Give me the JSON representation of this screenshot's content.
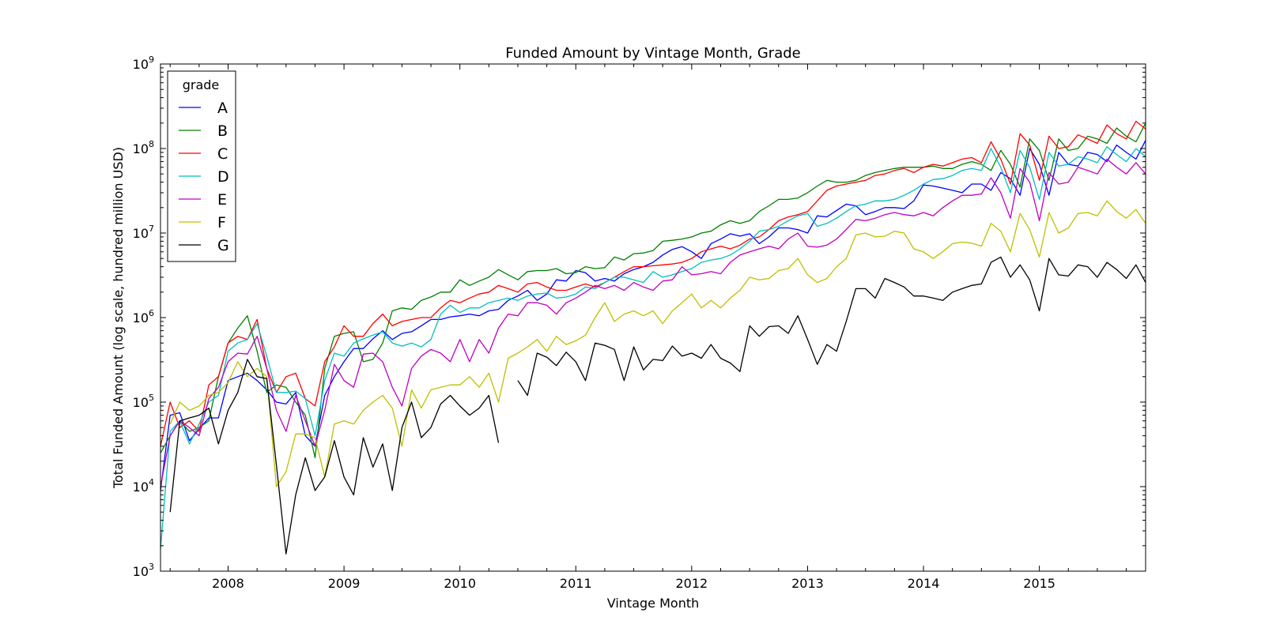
{
  "chart_data": {
    "type": "line",
    "title": "Funded Amount by Vintage Month, Grade",
    "xlabel": "Vintage Month",
    "ylabel": "Total Funded Amount (log scale, hundred million USD)",
    "yscale": "log",
    "ylim": [
      1000,
      1000000000
    ],
    "x_range": [
      "2007-06",
      "2015-12"
    ],
    "x_ticks": [
      "2008",
      "2009",
      "2010",
      "2011",
      "2012",
      "2013",
      "2014",
      "2015"
    ],
    "y_ticks": [
      {
        "value": 1000,
        "base": "10",
        "exp": "3"
      },
      {
        "value": 10000,
        "base": "10",
        "exp": "4"
      },
      {
        "value": 100000,
        "base": "10",
        "exp": "5"
      },
      {
        "value": 1000000,
        "base": "10",
        "exp": "6"
      },
      {
        "value": 10000000,
        "base": "10",
        "exp": "7"
      },
      {
        "value": 100000000,
        "base": "10",
        "exp": "8"
      },
      {
        "value": 1000000000,
        "base": "10",
        "exp": "9"
      }
    ],
    "grid": false,
    "legend": {
      "title": "grade",
      "position": "top-left"
    },
    "start_month": "2007-06",
    "series": [
      {
        "name": "A",
        "color": "#0000ff",
        "start": "2007-06",
        "values": [
          9000,
          70000,
          75000,
          35000,
          48000,
          65000,
          65000,
          180000,
          200000,
          220000,
          180000,
          140000,
          100000,
          95000,
          130000,
          40000,
          30000,
          120000,
          200000,
          300000,
          430000,
          430000,
          560000,
          700000,
          550000,
          650000,
          680000,
          800000,
          950000,
          950000,
          1020000,
          1050000,
          1100000,
          1050000,
          1200000,
          1250000,
          1600000,
          1800000,
          2100000,
          1600000,
          1900000,
          2800000,
          2700000,
          3600000,
          3400000,
          2700000,
          2900000,
          2700000,
          3300000,
          3700000,
          4000000,
          4500000,
          5500000,
          6400000,
          6900000,
          6000000,
          5000000,
          7500000,
          8500000,
          9800000,
          9200000,
          9800000,
          7500000,
          9000000,
          11500000,
          11500000,
          11000000,
          10000000,
          16000000,
          15500000,
          18500000,
          22000000,
          21000000,
          16500000,
          18000000,
          20000000,
          20000000,
          19500000,
          24000000,
          37000000,
          36000000,
          34000000,
          32000000,
          30000000,
          38000000,
          38000000,
          32000000,
          52000000,
          44000000,
          28000000,
          100000000,
          65000000,
          28000000,
          90000000,
          65000000,
          62000000,
          90000000,
          85000000,
          70000000,
          110000000,
          90000000,
          75000000,
          125000000,
          95000000,
          115000000
        ]
      },
      {
        "name": "B",
        "color": "#008000",
        "start": "2007-06",
        "values": [
          25000,
          40000,
          60000,
          45000,
          50000,
          60000,
          200000,
          500000,
          750000,
          1050000,
          400000,
          130000,
          160000,
          150000,
          100000,
          70000,
          22000,
          250000,
          600000,
          650000,
          680000,
          300000,
          320000,
          500000,
          1200000,
          1300000,
          1250000,
          1600000,
          1750000,
          2000000,
          2000000,
          2800000,
          2400000,
          2700000,
          3000000,
          3700000,
          3200000,
          2800000,
          3500000,
          3600000,
          3600000,
          3800000,
          3300000,
          3400000,
          4000000,
          3800000,
          3900000,
          5200000,
          4800000,
          5700000,
          5800000,
          6200000,
          8000000,
          8200000,
          8500000,
          9000000,
          10000000,
          10500000,
          12500000,
          14000000,
          13000000,
          14000000,
          18000000,
          21000000,
          25000000,
          25000000,
          26000000,
          30000000,
          36000000,
          42000000,
          40000000,
          40000000,
          42000000,
          48000000,
          52000000,
          55000000,
          58000000,
          60000000,
          60000000,
          60000000,
          62000000,
          58000000,
          58000000,
          65000000,
          70000000,
          65000000,
          55000000,
          95000000,
          65000000,
          35000000,
          130000000,
          95000000,
          42000000,
          130000000,
          95000000,
          100000000,
          140000000,
          130000000,
          115000000,
          175000000,
          140000000,
          120000000,
          200000000,
          160000000,
          180000000
        ]
      },
      {
        "name": "C",
        "color": "#ff0000",
        "start": "2007-06",
        "values": [
          30000,
          100000,
          50000,
          60000,
          45000,
          160000,
          200000,
          500000,
          600000,
          550000,
          950000,
          250000,
          130000,
          200000,
          220000,
          110000,
          90000,
          300000,
          450000,
          800000,
          600000,
          600000,
          850000,
          1100000,
          800000,
          900000,
          950000,
          1000000,
          1000000,
          1300000,
          1600000,
          1500000,
          1700000,
          1900000,
          2000000,
          2400000,
          2200000,
          2000000,
          2500000,
          2600000,
          2300000,
          2100000,
          2100000,
          2300000,
          2500000,
          2300000,
          2600000,
          3000000,
          3500000,
          4000000,
          4000000,
          4100000,
          4200000,
          4300000,
          4500000,
          5000000,
          6000000,
          6500000,
          7000000,
          6500000,
          7200000,
          8500000,
          9000000,
          11000000,
          14000000,
          15500000,
          16500000,
          18000000,
          24000000,
          32000000,
          36000000,
          38000000,
          40000000,
          42000000,
          48000000,
          50000000,
          55000000,
          58000000,
          52000000,
          60000000,
          65000000,
          62000000,
          68000000,
          75000000,
          78000000,
          68000000,
          120000000,
          75000000,
          38000000,
          150000000,
          110000000,
          42000000,
          140000000,
          100000000,
          105000000,
          145000000,
          130000000,
          115000000,
          190000000,
          150000000,
          130000000,
          210000000,
          170000000,
          190000000
        ]
      },
      {
        "name": "D",
        "color": "#00bfbf",
        "start": "2007-06",
        "values": [
          1800,
          45000,
          60000,
          32000,
          55000,
          100000,
          120000,
          400000,
          500000,
          550000,
          850000,
          350000,
          130000,
          130000,
          135000,
          110000,
          40000,
          180000,
          380000,
          350000,
          500000,
          560000,
          620000,
          680000,
          500000,
          460000,
          500000,
          450000,
          550000,
          1100000,
          1400000,
          1150000,
          1300000,
          1300000,
          1500000,
          1600000,
          1700000,
          1600000,
          1800000,
          1900000,
          1950000,
          1700000,
          1750000,
          1900000,
          2300000,
          2200000,
          2600000,
          3000000,
          3000000,
          2800000,
          2600000,
          3500000,
          3000000,
          3200000,
          3500000,
          3800000,
          4500000,
          4800000,
          5000000,
          5500000,
          6500000,
          8000000,
          10500000,
          11000000,
          12000000,
          14000000,
          16000000,
          17000000,
          12000000,
          13000000,
          15000000,
          18000000,
          21000000,
          22000000,
          24000000,
          24000000,
          25000000,
          28000000,
          32000000,
          38000000,
          43000000,
          44000000,
          48000000,
          55000000,
          58000000,
          55000000,
          100000000,
          60000000,
          30000000,
          95000000,
          60000000,
          25000000,
          90000000,
          62000000,
          65000000,
          80000000,
          75000000,
          68000000,
          105000000,
          85000000,
          70000000,
          100000000,
          80000000,
          95000000
        ]
      },
      {
        "name": "E",
        "color": "#bf00bf",
        "start": "2007-06",
        "values": [
          10000,
          40000,
          60000,
          50000,
          40000,
          110000,
          150000,
          300000,
          380000,
          370000,
          600000,
          250000,
          80000,
          45000,
          120000,
          60000,
          30000,
          80000,
          280000,
          180000,
          150000,
          370000,
          380000,
          300000,
          150000,
          90000,
          250000,
          350000,
          420000,
          380000,
          300000,
          550000,
          300000,
          550000,
          380000,
          750000,
          1100000,
          1050000,
          1500000,
          1500000,
          1400000,
          1100000,
          1500000,
          1700000,
          2000000,
          2400000,
          2200000,
          2400000,
          2100000,
          2600000,
          2300000,
          2100000,
          2700000,
          2800000,
          4000000,
          3200000,
          3300000,
          3500000,
          3300000,
          4500000,
          5500000,
          6000000,
          6500000,
          7000000,
          6500000,
          8500000,
          10000000,
          7000000,
          6800000,
          7200000,
          8500000,
          11000000,
          14500000,
          14000000,
          15000000,
          16500000,
          17500000,
          16500000,
          16000000,
          17500000,
          16000000,
          20000000,
          24000000,
          28000000,
          28000000,
          29000000,
          45000000,
          30000000,
          15000000,
          58000000,
          40000000,
          14000000,
          52000000,
          38000000,
          40000000,
          60000000,
          55000000,
          50000000,
          75000000,
          60000000,
          50000000,
          68000000,
          50000000,
          62000000
        ]
      },
      {
        "name": "F",
        "color": "#bfbf00",
        "start": "2007-06",
        "values": [
          null,
          55000,
          100000,
          80000,
          90000,
          120000,
          130000,
          170000,
          300000,
          200000,
          250000,
          200000,
          10000,
          15000,
          42000,
          42000,
          38000,
          13000,
          55000,
          60000,
          55000,
          80000,
          100000,
          120000,
          85000,
          30000,
          140000,
          85000,
          140000,
          150000,
          160000,
          160000,
          200000,
          150000,
          220000,
          100000,
          330000,
          380000,
          450000,
          550000,
          400000,
          600000,
          480000,
          530000,
          620000,
          1000000,
          1500000,
          900000,
          1100000,
          1200000,
          1050000,
          1200000,
          850000,
          1200000,
          1500000,
          1900000,
          1300000,
          1600000,
          1300000,
          1700000,
          2100000,
          3000000,
          2800000,
          2900000,
          3600000,
          3800000,
          5000000,
          3200000,
          2600000,
          2900000,
          4000000,
          5000000,
          9500000,
          10000000,
          9000000,
          9200000,
          10500000,
          10000000,
          6500000,
          6000000,
          5000000,
          6000000,
          7500000,
          7800000,
          7600000,
          7000000,
          13000000,
          10500000,
          6000000,
          17000000,
          11000000,
          5200000,
          17500000,
          10000000,
          11500000,
          17000000,
          17500000,
          16000000,
          24000000,
          18000000,
          15000000,
          19000000,
          13000000,
          17500000
        ]
      },
      {
        "name": "G",
        "color": "#000000",
        "start": "2007-06",
        "values": [
          null,
          5000,
          60000,
          65000,
          70000,
          85000,
          32000,
          80000,
          130000,
          320000,
          200000,
          190000,
          18000,
          1600,
          8000,
          22000,
          9000,
          13000,
          35000,
          13000,
          8000,
          38000,
          17000,
          32000,
          9000,
          50000,
          100000,
          38000,
          50000,
          95000,
          120000,
          90000,
          70000,
          85000,
          120000,
          33000,
          null,
          180000,
          120000,
          380000,
          340000,
          270000,
          390000,
          300000,
          180000,
          500000,
          470000,
          420000,
          180000,
          450000,
          240000,
          320000,
          310000,
          460000,
          350000,
          380000,
          330000,
          480000,
          330000,
          290000,
          230000,
          800000,
          600000,
          780000,
          800000,
          650000,
          1050000,
          550000,
          280000,
          480000,
          400000,
          900000,
          2200000,
          2200000,
          1700000,
          2900000,
          2600000,
          2300000,
          1800000,
          1800000,
          1700000,
          1600000,
          2000000,
          2200000,
          2400000,
          2500000,
          4500000,
          5200000,
          3000000,
          4200000,
          2800000,
          1200000,
          5000000,
          3200000,
          3100000,
          4200000,
          4000000,
          3000000,
          4500000,
          3700000,
          2900000,
          4200000,
          2600000,
          3300000
        ]
      }
    ]
  }
}
